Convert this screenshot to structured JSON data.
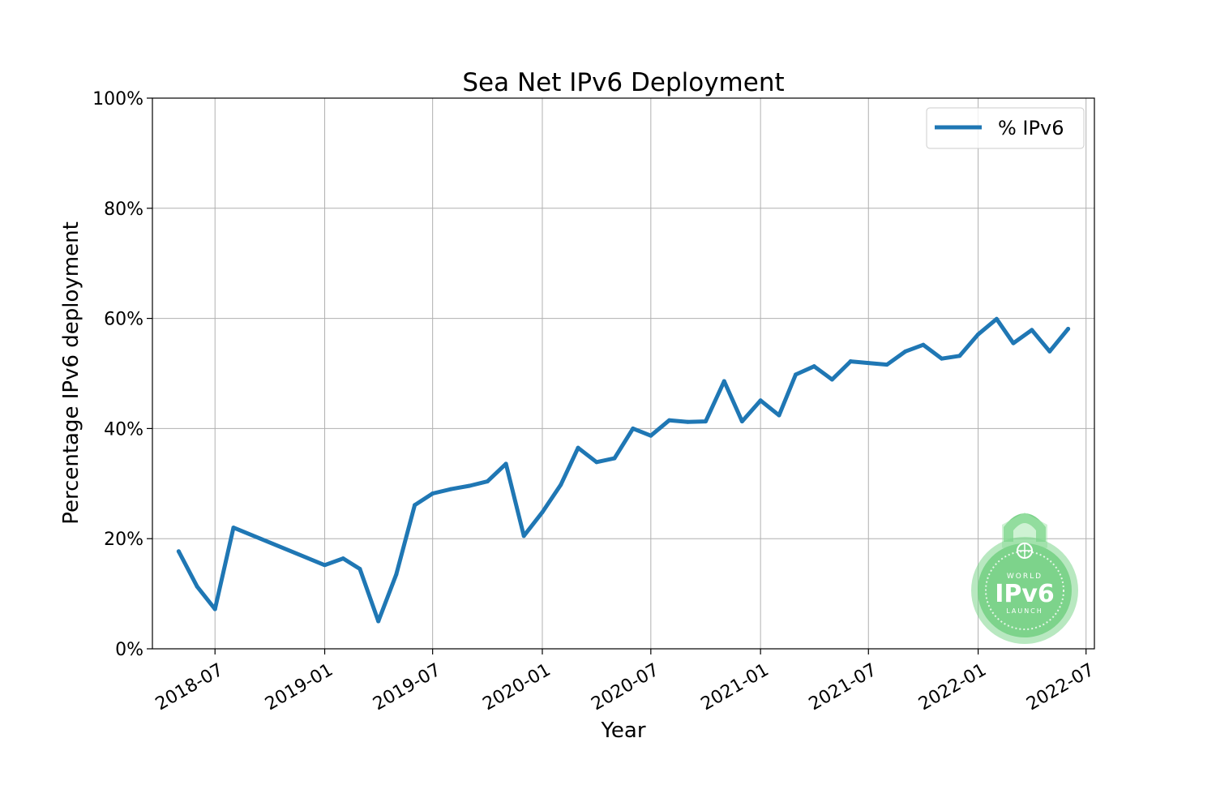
{
  "chart_data": {
    "type": "line",
    "title": "Sea Net IPv6 Deployment",
    "xlabel": "Year",
    "ylabel": "Percentage IPv6 deployment",
    "x_axis_type": "date",
    "xlim": [
      "2018-03-18",
      "2022-07-15"
    ],
    "ylim": [
      0,
      100
    ],
    "grid": true,
    "legend_position": "top-right",
    "y_ticks": [
      0,
      20,
      40,
      60,
      80,
      100
    ],
    "y_tick_labels": [
      "0%",
      "20%",
      "40%",
      "60%",
      "80%",
      "100%"
    ],
    "x_ticks": [
      "2018-07-01",
      "2019-01-01",
      "2019-07-01",
      "2020-01-01",
      "2020-07-01",
      "2021-01-01",
      "2021-07-01",
      "2022-01-01",
      "2022-07-01"
    ],
    "x_tick_labels": [
      "2018-07",
      "2019-01",
      "2019-07",
      "2020-01",
      "2020-07",
      "2021-01",
      "2021-07",
      "2022-01",
      "2022-07"
    ],
    "series": [
      {
        "name": "% IPv6",
        "color": "#1f77b4",
        "x": [
          "2018-05-01",
          "2018-06-01",
          "2018-07-01",
          "2018-08-01",
          "2019-01-01",
          "2019-02-01",
          "2019-03-01",
          "2019-04-01",
          "2019-05-01",
          "2019-06-01",
          "2019-07-01",
          "2019-08-01",
          "2019-09-01",
          "2019-10-01",
          "2019-11-01",
          "2019-12-01",
          "2020-01-01",
          "2020-02-01",
          "2020-03-01",
          "2020-04-01",
          "2020-05-01",
          "2020-06-01",
          "2020-07-01",
          "2020-08-01",
          "2020-09-01",
          "2020-10-01",
          "2020-11-01",
          "2020-12-01",
          "2021-01-01",
          "2021-02-01",
          "2021-03-01",
          "2021-04-01",
          "2021-05-01",
          "2021-06-01",
          "2021-07-01",
          "2021-08-01",
          "2021-09-01",
          "2021-10-01",
          "2021-11-01",
          "2021-12-01",
          "2022-01-01",
          "2022-02-01",
          "2022-03-01",
          "2022-04-01",
          "2022-05-01",
          "2022-06-01"
        ],
        "y": [
          17.7,
          11.3,
          7.2,
          22.0,
          15.2,
          16.4,
          14.5,
          5.0,
          13.5,
          26.1,
          28.2,
          29.0,
          29.6,
          30.4,
          33.6,
          20.5,
          24.8,
          29.8,
          36.5,
          33.9,
          34.6,
          40.0,
          38.7,
          41.5,
          41.2,
          41.3,
          48.6,
          41.3,
          45.1,
          42.4,
          49.8,
          51.3,
          48.9,
          52.2,
          51.9,
          51.6,
          54.0,
          55.2,
          52.7,
          53.2,
          57.1,
          59.9,
          55.5,
          57.9,
          54.0,
          58.1
        ]
      }
    ],
    "watermark": {
      "top_text": "WORLD",
      "main_text": "IPv6",
      "bottom_text": "LAUNCH",
      "color": "#6fcf7f"
    }
  }
}
